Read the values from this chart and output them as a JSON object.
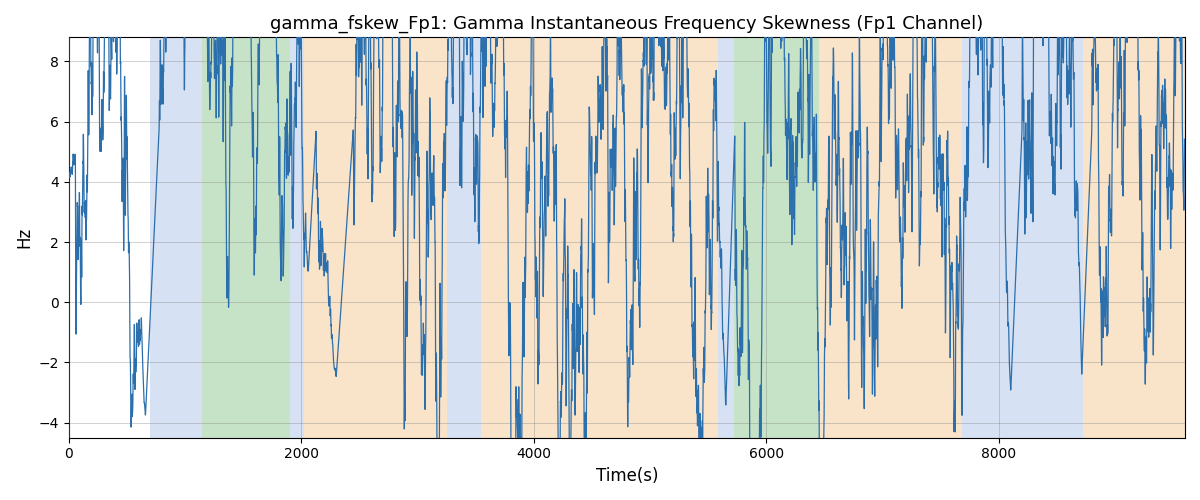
{
  "title": "gamma_fskew_Fp1: Gamma Instantaneous Frequency Skewness (Fp1 Channel)",
  "xlabel": "Time(s)",
  "ylabel": "Hz",
  "ylim": [
    -4.5,
    8.8
  ],
  "yticks": [
    -4,
    -2,
    0,
    2,
    4,
    6,
    8
  ],
  "xlim": [
    0,
    9600
  ],
  "xticks": [
    0,
    2000,
    4000,
    6000,
    8000
  ],
  "line_color": "#2c6fad",
  "line_width": 0.9,
  "bg_bands": [
    {
      "start": 700,
      "end": 1150,
      "color": "#aec6e8",
      "alpha": 0.5
    },
    {
      "start": 1150,
      "end": 1900,
      "color": "#90c990",
      "alpha": 0.5
    },
    {
      "start": 1900,
      "end": 2020,
      "color": "#aec6e8",
      "alpha": 0.5
    },
    {
      "start": 2020,
      "end": 3250,
      "color": "#f5c895",
      "alpha": 0.5
    },
    {
      "start": 3250,
      "end": 3550,
      "color": "#aec6e8",
      "alpha": 0.5
    },
    {
      "start": 3550,
      "end": 5580,
      "color": "#f5c895",
      "alpha": 0.5
    },
    {
      "start": 5580,
      "end": 5720,
      "color": "#aec6e8",
      "alpha": 0.5
    },
    {
      "start": 5720,
      "end": 6450,
      "color": "#90c990",
      "alpha": 0.5
    },
    {
      "start": 6450,
      "end": 7680,
      "color": "#f5c895",
      "alpha": 0.5
    },
    {
      "start": 7680,
      "end": 8720,
      "color": "#aec6e8",
      "alpha": 0.5
    },
    {
      "start": 8720,
      "end": 9600,
      "color": "#f5c895",
      "alpha": 0.5
    }
  ],
  "seed": 42,
  "n_points": 9600,
  "base_value": 5.9,
  "figsize": [
    12.0,
    5.0
  ],
  "dpi": 100
}
